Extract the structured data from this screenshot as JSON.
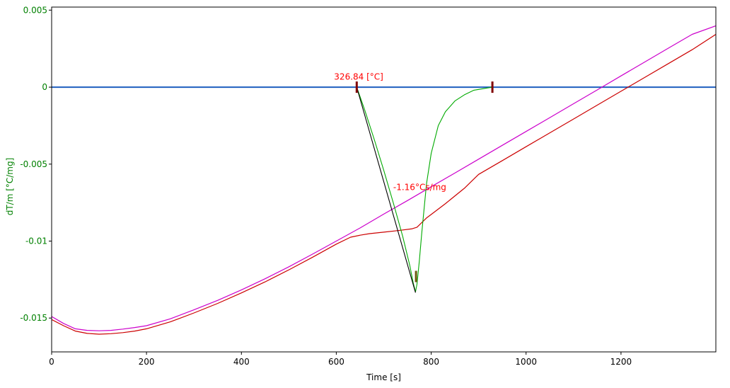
{
  "chart_data": {
    "type": "line",
    "xlabel": "Time [s]",
    "ylabel": "dT/m  [°C/mg]",
    "xlim": [
      0,
      1400
    ],
    "ylim": [
      -0.0172,
      0.0052
    ],
    "xticks": [
      {
        "value": 0,
        "label": "0"
      },
      {
        "value": 200,
        "label": "200"
      },
      {
        "value": 400,
        "label": "400"
      },
      {
        "value": 600,
        "label": "600"
      },
      {
        "value": 800,
        "label": "800"
      },
      {
        "value": 1000,
        "label": "1000"
      },
      {
        "value": 1200,
        "label": "1200"
      }
    ],
    "yticks": [
      {
        "value": 0.005,
        "label": "0.005"
      },
      {
        "value": 0,
        "label": "0"
      },
      {
        "value": -0.005,
        "label": "-0.005"
      },
      {
        "value": -0.01,
        "label": "-0.01"
      },
      {
        "value": -0.015,
        "label": "-0.015"
      }
    ],
    "grid": false,
    "colors": {
      "axis_text": "#008000",
      "baseline": "#1f5fbf",
      "corrected": "#cc00cc",
      "measured": "#cc0000",
      "peak": "#00aa00",
      "tangent": "#000000",
      "annotation": "#ff0000",
      "marker": "#800000"
    },
    "series": [
      {
        "id": "baseline",
        "x": [
          0,
          1400
        ],
        "y": [
          0,
          0
        ]
      },
      {
        "id": "corrected",
        "x": [
          0,
          25,
          50,
          75,
          100,
          125,
          150,
          175,
          200,
          250,
          300,
          350,
          400,
          450,
          500,
          550,
          600,
          650,
          700,
          750,
          800,
          850,
          900,
          950,
          1000,
          1050,
          1100,
          1150,
          1200,
          1250,
          1300,
          1350,
          1400
        ],
        "y": [
          -0.0149,
          -0.01535,
          -0.0157,
          -0.0158,
          -0.01583,
          -0.0158,
          -0.01572,
          -0.01562,
          -0.0155,
          -0.01505,
          -0.01447,
          -0.01385,
          -0.01317,
          -0.01245,
          -0.01167,
          -0.01085,
          -0.01,
          -0.00915,
          -0.00825,
          -0.00737,
          -0.00647,
          -0.00558,
          -0.00468,
          -0.00378,
          -0.00288,
          -0.00198,
          -0.00108,
          -0.00018,
          0.00073,
          0.00163,
          0.00253,
          0.00343,
          0.00398
        ]
      },
      {
        "id": "measured",
        "x": [
          0,
          25,
          50,
          75,
          100,
          125,
          150,
          175,
          200,
          250,
          300,
          350,
          400,
          450,
          500,
          550,
          600,
          630,
          650,
          670,
          700,
          730,
          760,
          770,
          780,
          790,
          800,
          830,
          870,
          900,
          950,
          1000,
          1050,
          1100,
          1150,
          1200,
          1250,
          1300,
          1350,
          1400
        ],
        "y": [
          -0.0151,
          -0.0155,
          -0.01585,
          -0.016,
          -0.01605,
          -0.01602,
          -0.01595,
          -0.01585,
          -0.0157,
          -0.01525,
          -0.01467,
          -0.01405,
          -0.01337,
          -0.01265,
          -0.01187,
          -0.01105,
          -0.0102,
          -0.00975,
          -0.00962,
          -0.00952,
          -0.00942,
          -0.00932,
          -0.0092,
          -0.0091,
          -0.0088,
          -0.0085,
          -0.00827,
          -0.00757,
          -0.00657,
          -0.00567,
          -0.00477,
          -0.00387,
          -0.00297,
          -0.00207,
          -0.00117,
          -0.00027,
          0.00063,
          0.00153,
          0.00243,
          0.00343
        ]
      },
      {
        "id": "peak",
        "x": [
          643,
          660,
          680,
          700,
          720,
          740,
          755,
          762,
          767,
          770,
          775,
          780,
          790,
          800,
          815,
          830,
          850,
          870,
          890,
          910,
          929
        ],
        "y": [
          0,
          -0.0015,
          -0.0034,
          -0.0054,
          -0.0075,
          -0.0097,
          -0.0116,
          -0.0127,
          -0.0133,
          -0.0128,
          -0.0113,
          -0.0095,
          -0.0063,
          -0.0043,
          -0.0025,
          -0.0016,
          -0.0009,
          -0.0005,
          -0.0002,
          -0.0001,
          0
        ]
      },
      {
        "id": "tangent",
        "x": [
          643,
          767
        ],
        "y": [
          0,
          -0.01335
        ]
      }
    ],
    "markers": [
      {
        "x": 643,
        "y": 0,
        "color": "#800000"
      },
      {
        "x": 929,
        "y": 0,
        "color": "#800000"
      },
      {
        "x": 768,
        "y": -0.0123,
        "color": "#6b5a10"
      }
    ],
    "annotations": [
      {
        "text": "326.84 [°C]",
        "x": 643,
        "y": 0.0003
      },
      {
        "text": "-1.16°Cs/mg",
        "x": 720,
        "y": -0.0067
      }
    ]
  }
}
